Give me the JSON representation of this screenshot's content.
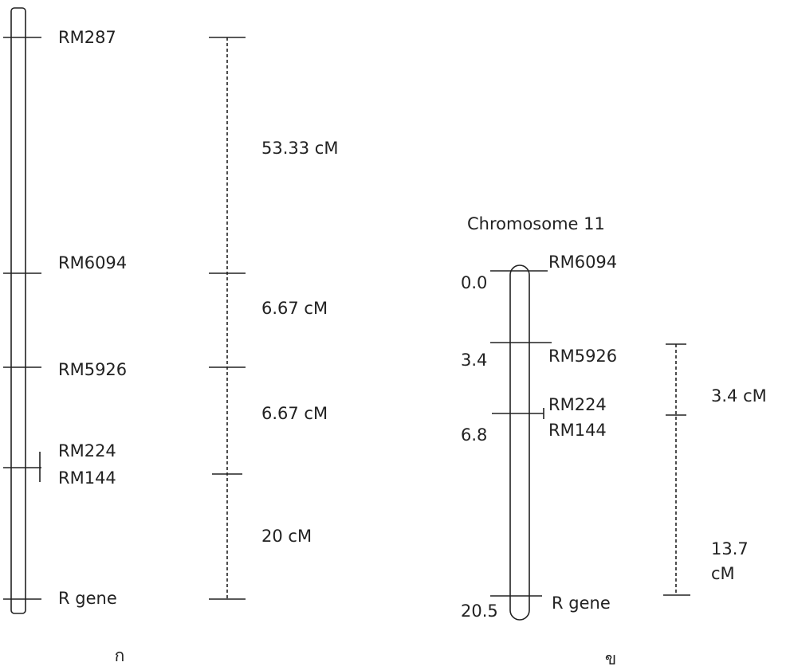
{
  "map_a": {
    "markers": [
      "RM287",
      "RM6094",
      "RM5926",
      "RM224",
      "RM144",
      "R gene"
    ],
    "distances": [
      "53.33 cM",
      "6.67 cM",
      "6.67 cM",
      "20 cM"
    ],
    "label": "ก"
  },
  "map_b": {
    "title": "Chromosome 11",
    "positions": [
      "0.0",
      "3.4",
      "6.8",
      "20.5"
    ],
    "markers": [
      "RM6094",
      "RM5926",
      "RM224",
      "RM144",
      "R gene"
    ],
    "distances": [
      "3.4 cM",
      "13.7",
      "cM"
    ],
    "label": "ข"
  }
}
